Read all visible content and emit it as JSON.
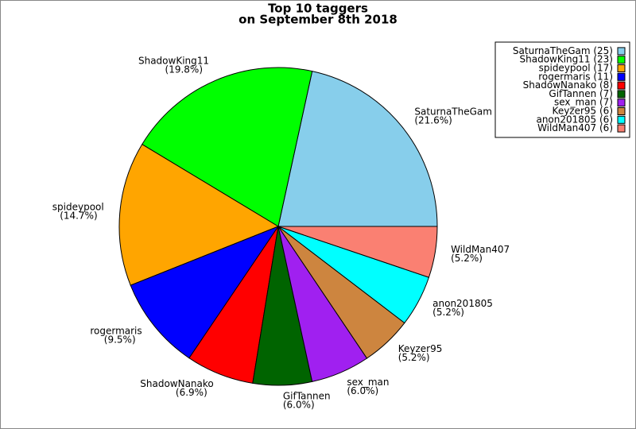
{
  "chart_data": {
    "type": "pie",
    "title": [
      "Top 10 taggers",
      "on September 8th 2018"
    ],
    "categories": [
      "SaturnaTheGam",
      "ShadowKing11",
      "spideypool",
      "rogermaris",
      "ShadowNanako",
      "GifTannen",
      "sex_man",
      "Keyzer95",
      "anon201805",
      "WildMan407"
    ],
    "values": [
      21.6,
      19.8,
      14.7,
      9.5,
      6.9,
      6.0,
      6.0,
      5.2,
      5.2,
      5.2
    ],
    "value_labels": [
      "(21.6%)",
      "(19.8%)",
      "(14.7%)",
      "(9.5%)",
      "(6.9%)",
      "(6.0%)",
      "(6.0%)",
      "(5.2%)",
      "(5.2%)",
      "(5.2%)"
    ],
    "legend_labels": [
      "SaturnaTheGam (25)",
      "ShadowKing11 (23)",
      "spideypool (17)",
      "rogermaris (11)",
      "ShadowNanako (8)",
      "GifTannen (7)",
      "sex_man (7)",
      "Keyzer95 (6)",
      "anon201805 (6)",
      "WildMan407 (6)"
    ],
    "colors": [
      "#87ceeb",
      "#00ff00",
      "#ffa500",
      "#0000ff",
      "#ff0000",
      "#006400",
      "#a020f0",
      "#cd853f",
      "#00ffff",
      "#fa8072"
    ],
    "legend": "upper right"
  }
}
